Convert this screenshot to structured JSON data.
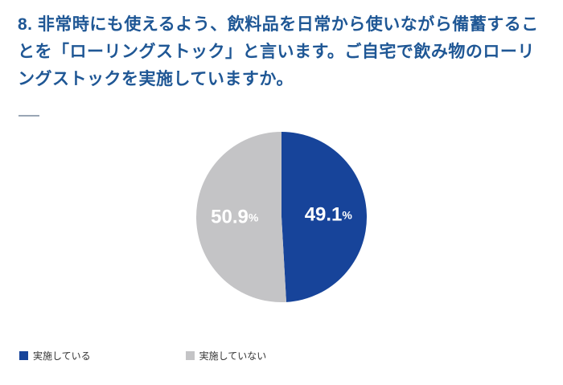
{
  "title": "8. 非常時にも使えるよう、飲料品を日常から使いながら備蓄することを「ローリングストック」と言います。ご自宅で飲み物のローリングストックを実施していますか。",
  "title_color": "#1f5795",
  "chart_data": {
    "type": "pie",
    "labels": [
      "実施している",
      "実施していない"
    ],
    "values": [
      49.1,
      50.9
    ],
    "colors": [
      "#17449a",
      "#c4c4c6"
    ],
    "label_text": [
      "49.1%",
      "50.9%"
    ],
    "label_color": "#ffffff",
    "start_angle_deg": -90,
    "direction": "clockwise",
    "legend_position": "bottom-left",
    "title": "8. 非常時にも使えるよう、飲料品を日常から使いながら備蓄することを「ローリングストック」と言います。ご自宅で飲み物のローリングストックを実施していますか。"
  },
  "legend": {
    "items": [
      {
        "label": "実施している",
        "color": "#17449a"
      },
      {
        "label": "実施していない",
        "color": "#c4c4c6"
      }
    ]
  }
}
